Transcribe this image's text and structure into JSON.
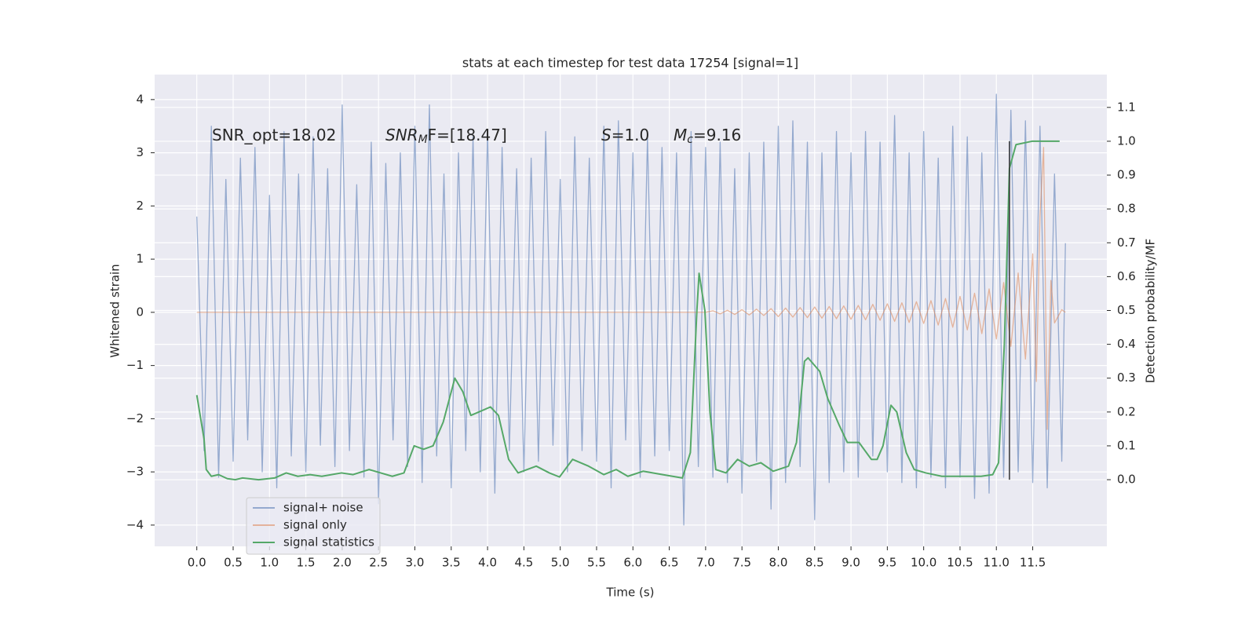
{
  "chart_data": {
    "type": "line",
    "title": "stats at each timestep for test data 17254 [signal=1]",
    "xlabel": "Time (s)",
    "ylabel": "Whitened strain",
    "y2label": "Detection probability/MF",
    "xlim": [
      -0.58,
      12.52
    ],
    "ylim": [
      -4.4,
      4.47
    ],
    "y2lim": [
      -0.197,
      1.197
    ],
    "xticks": [
      {
        "value": 0,
        "label": "0.0"
      },
      0.5,
      {
        "value": 1,
        "label": "1.0"
      },
      1.5,
      {
        "value": 2,
        "label": "2.0"
      },
      2.5,
      {
        "value": 3,
        "label": "3.0"
      },
      3.5,
      {
        "value": 4,
        "label": "4.0"
      },
      4.5,
      {
        "value": 5,
        "label": "5.0"
      },
      5.5,
      {
        "value": 6,
        "label": "6.0"
      },
      6.5,
      {
        "value": 7,
        "label": "7.0"
      },
      7.5,
      {
        "value": 8,
        "label": "8.0"
      },
      8.5,
      {
        "value": 9,
        "label": "9.0"
      },
      9.5,
      {
        "value": 10,
        "label": "10.0"
      },
      10.5,
      {
        "value": 11,
        "label": "11.0"
      },
      11.5
    ],
    "yticks": [
      {
        "value": -4,
        "label": "−4"
      },
      {
        "value": -3,
        "label": "−3"
      },
      {
        "value": -2,
        "label": "−2"
      },
      {
        "value": -1,
        "label": "−1"
      },
      0,
      1,
      2,
      3,
      4
    ],
    "y2ticks": [
      {
        "value": 0,
        "label": "0.0"
      },
      0.1,
      0.2,
      0.3,
      0.4,
      0.5,
      0.6,
      0.7,
      0.8,
      0.9,
      {
        "value": 1,
        "label": "1.0"
      },
      1.1
    ],
    "grid": true,
    "annotations": [
      {
        "main": "SNR_opt=18.02"
      },
      {
        "main": "SNR",
        "sub": "M",
        "rest": "F=[18.47]"
      },
      {
        "main": "S",
        "rest": "=1.0"
      },
      {
        "main": "M",
        "sub": "c",
        "rest": "=9.16"
      }
    ],
    "vline": {
      "x": 11.18,
      "y2": [
        0.0,
        1.0
      ],
      "color": "#333333"
    },
    "series": [
      {
        "name": "signal+ noise",
        "color": "#4c72b0",
        "axis": "y",
        "x": [
          0,
          0.1,
          0.2,
          0.3,
          0.4,
          0.5,
          0.6,
          0.7,
          0.8,
          0.9,
          1.0,
          1.1,
          1.2,
          1.3,
          1.4,
          1.5,
          1.6,
          1.7,
          1.8,
          1.9,
          2.0,
          2.1,
          2.2,
          2.3,
          2.4,
          2.5,
          2.6,
          2.7,
          2.8,
          2.9,
          3.0,
          3.1,
          3.2,
          3.3,
          3.4,
          3.5,
          3.6,
          3.7,
          3.8,
          3.9,
          4.0,
          4.1,
          4.2,
          4.3,
          4.4,
          4.5,
          4.6,
          4.7,
          4.8,
          4.9,
          5.0,
          5.1,
          5.2,
          5.3,
          5.4,
          5.5,
          5.6,
          5.7,
          5.8,
          5.9,
          6.0,
          6.1,
          6.2,
          6.3,
          6.4,
          6.5,
          6.6,
          6.7,
          6.8,
          6.9,
          7.0,
          7.1,
          7.2,
          7.3,
          7.4,
          7.5,
          7.6,
          7.7,
          7.8,
          7.9,
          8.0,
          8.1,
          8.2,
          8.3,
          8.4,
          8.5,
          8.6,
          8.7,
          8.8,
          8.9,
          9.0,
          9.1,
          9.2,
          9.3,
          9.4,
          9.5,
          9.6,
          9.7,
          9.8,
          9.9,
          10.0,
          10.1,
          10.2,
          10.3,
          10.4,
          10.5,
          10.6,
          10.7,
          10.8,
          10.9,
          11.0,
          11.1,
          11.2,
          11.3,
          11.4,
          11.5,
          11.6,
          11.7,
          11.8,
          11.9,
          11.95
        ],
        "values": [
          1.8,
          -2.6,
          3.5,
          -3.1,
          2.5,
          -2.8,
          2.9,
          -2.4,
          3.1,
          -3.0,
          2.2,
          -3.3,
          3.4,
          -2.7,
          2.6,
          -3.0,
          3.3,
          -2.5,
          2.7,
          -2.9,
          3.9,
          -2.6,
          2.4,
          -3.1,
          3.2,
          -3.6,
          2.8,
          -2.4,
          3.0,
          -2.9,
          3.5,
          -3.2,
          3.9,
          -2.7,
          2.6,
          -3.3,
          3.0,
          -2.6,
          3.3,
          -3.0,
          3.4,
          -3.4,
          3.1,
          -2.6,
          2.7,
          -3.0,
          2.9,
          -2.8,
          3.4,
          -2.5,
          2.5,
          -3.0,
          3.3,
          -2.6,
          2.9,
          -2.8,
          3.5,
          -3.3,
          3.6,
          -2.4,
          3.0,
          -3.1,
          3.3,
          -2.7,
          3.1,
          -2.6,
          3.0,
          -4.0,
          3.4,
          -2.9,
          3.1,
          -3.1,
          3.2,
          -3.2,
          2.7,
          -3.4,
          3.0,
          -2.8,
          3.2,
          -3.7,
          3.5,
          -3.2,
          3.6,
          -2.9,
          3.2,
          -3.9,
          3.0,
          -3.2,
          3.4,
          -3.0,
          3.0,
          -3.1,
          3.4,
          -2.7,
          3.2,
          -3.0,
          3.7,
          -3.2,
          3.0,
          -3.3,
          3.4,
          -3.1,
          2.9,
          -3.3,
          3.5,
          -3.1,
          3.3,
          -3.5,
          3.0,
          -3.4,
          4.1,
          -3.1,
          3.8,
          -3.0,
          3.6,
          -3.2,
          3.5,
          -3.3,
          2.6,
          -2.8,
          1.3
        ]
      },
      {
        "name": "signal only",
        "color": "#dd8452",
        "axis": "y",
        "x": [
          0,
          7.0,
          7.1,
          7.2,
          7.3,
          7.4,
          7.5,
          7.6,
          7.7,
          7.8,
          7.9,
          8.0,
          8.1,
          8.2,
          8.3,
          8.4,
          8.5,
          8.6,
          8.7,
          8.8,
          8.9,
          9.0,
          9.1,
          9.2,
          9.3,
          9.4,
          9.5,
          9.6,
          9.7,
          9.8,
          9.9,
          10.0,
          10.1,
          10.2,
          10.3,
          10.4,
          10.5,
          10.6,
          10.7,
          10.8,
          10.9,
          11.0,
          11.1,
          11.2,
          11.3,
          11.4,
          11.5,
          11.55,
          11.6,
          11.65,
          11.7,
          11.75,
          11.8,
          11.9,
          11.95
        ],
        "values": [
          0,
          0,
          0.03,
          -0.03,
          0.04,
          -0.04,
          0.05,
          -0.05,
          0.06,
          -0.06,
          0.07,
          -0.08,
          0.08,
          -0.09,
          0.09,
          -0.1,
          0.1,
          -0.11,
          0.11,
          -0.12,
          0.12,
          -0.13,
          0.13,
          -0.14,
          0.15,
          -0.15,
          0.16,
          -0.17,
          0.18,
          -0.19,
          0.2,
          -0.21,
          0.22,
          -0.24,
          0.26,
          -0.28,
          0.3,
          -0.33,
          0.36,
          -0.4,
          0.44,
          -0.5,
          0.56,
          -0.64,
          0.74,
          -0.88,
          1.1,
          -1.3,
          1.8,
          3.1,
          -2.2,
          0.6,
          -0.2,
          0.05,
          0
        ]
      },
      {
        "name": "signal statistics",
        "color": "#55a868",
        "axis": "y2",
        "x": [
          0,
          0.1,
          0.13,
          0.2,
          0.3,
          0.42,
          0.53,
          0.63,
          0.85,
          1.07,
          1.23,
          1.39,
          1.56,
          1.72,
          1.99,
          2.15,
          2.37,
          2.53,
          2.69,
          2.85,
          2.99,
          3.12,
          3.25,
          3.39,
          3.55,
          3.66,
          3.77,
          3.88,
          4.04,
          4.15,
          4.29,
          4.42,
          4.67,
          4.85,
          4.99,
          5.17,
          5.39,
          5.6,
          5.77,
          5.93,
          6.14,
          6.41,
          6.68,
          6.79,
          6.88,
          6.91,
          6.99,
          7.06,
          7.14,
          7.28,
          7.44,
          7.6,
          7.76,
          7.93,
          8.14,
          8.25,
          8.36,
          8.41,
          8.57,
          8.68,
          8.84,
          8.95,
          9.11,
          9.28,
          9.36,
          9.44,
          9.55,
          9.63,
          9.76,
          9.87,
          10.03,
          10.25,
          10.79,
          10.95,
          11.03,
          11.11,
          11.18,
          11.27,
          11.49,
          11.87
        ],
        "values": [
          0.25,
          0.12,
          0.03,
          0.01,
          0.015,
          0.003,
          0.0,
          0.005,
          0.0,
          0.005,
          0.02,
          0.01,
          0.015,
          0.01,
          0.02,
          0.015,
          0.03,
          0.02,
          0.01,
          0.02,
          0.1,
          0.09,
          0.1,
          0.17,
          0.3,
          0.26,
          0.19,
          0.2,
          0.215,
          0.19,
          0.06,
          0.02,
          0.04,
          0.02,
          0.008,
          0.06,
          0.04,
          0.015,
          0.03,
          0.01,
          0.025,
          0.015,
          0.005,
          0.08,
          0.5,
          0.61,
          0.5,
          0.2,
          0.03,
          0.02,
          0.06,
          0.04,
          0.05,
          0.025,
          0.04,
          0.11,
          0.35,
          0.36,
          0.32,
          0.24,
          0.16,
          0.11,
          0.11,
          0.06,
          0.06,
          0.1,
          0.22,
          0.2,
          0.08,
          0.03,
          0.02,
          0.01,
          0.01,
          0.015,
          0.05,
          0.4,
          0.92,
          0.99,
          1.0,
          1.0
        ]
      }
    ]
  }
}
